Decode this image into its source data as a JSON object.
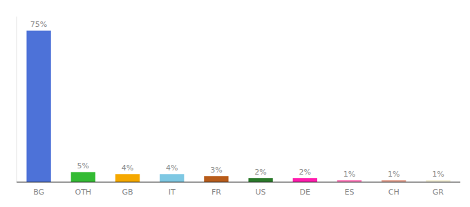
{
  "chart_data": {
    "type": "bar",
    "categories": [
      "BG",
      "OTH",
      "GB",
      "IT",
      "FR",
      "US",
      "DE",
      "ES",
      "CH",
      "GR"
    ],
    "values": [
      75,
      5,
      4,
      4,
      3,
      2,
      2,
      1,
      1,
      1
    ],
    "value_labels": [
      "75%",
      "5%",
      "4%",
      "4%",
      "3%",
      "2%",
      "2%",
      "1%",
      "1%",
      "1%"
    ],
    "colors": [
      "#4d72d8",
      "#33bb33",
      "#f5a800",
      "#7ec8e3",
      "#b85c1a",
      "#2a7a2a",
      "#ff1cad",
      "#ff80bf",
      "#e8a898",
      "#f5f0d8"
    ],
    "ylim": [
      0,
      82
    ],
    "data_labels": true,
    "tick_labels": "x",
    "grid": false
  }
}
